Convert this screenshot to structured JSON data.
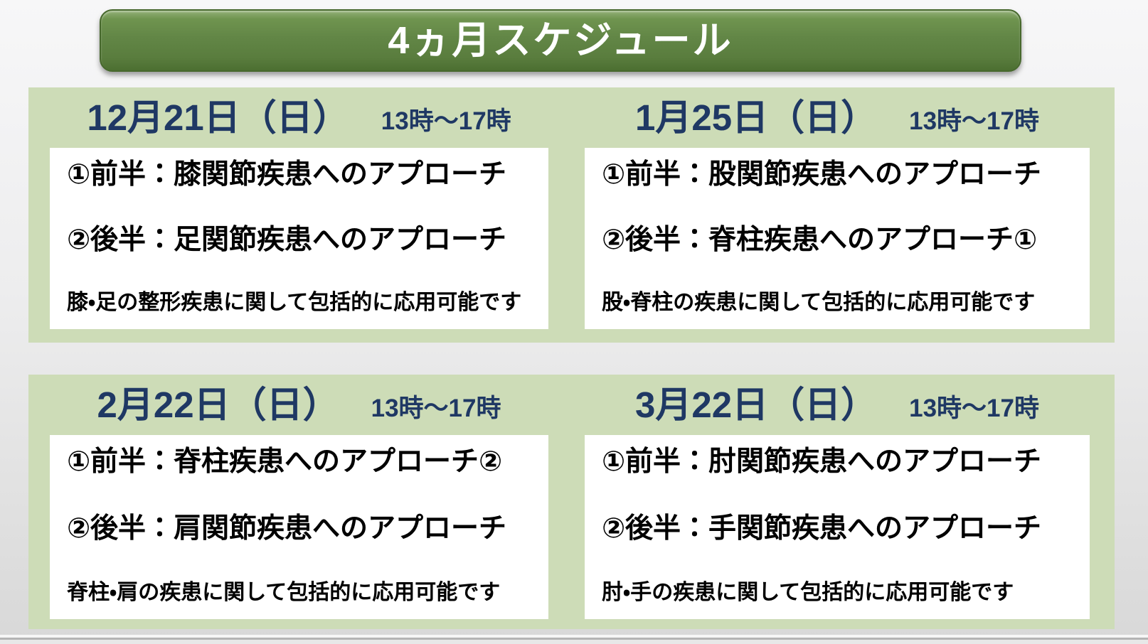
{
  "title": "4ヵ月スケジュール",
  "colors": {
    "navy": "#1f3864",
    "panel-green": "#cddcb7",
    "banner-green": "#628646",
    "banner-border": "#47682d",
    "text-black": "#000000",
    "page-bg-top": "#f7f7f8",
    "page-bg-bottom": "#d8d8d8"
  },
  "sessions": [
    {
      "date": "12月21日（日）",
      "time": "13時～17時",
      "line1": "①前半：膝関節疾患へのアプローチ",
      "line2": "②後半：足関節疾患へのアプローチ",
      "note": "膝・足の整形疾患に関して包括的に応用可能です"
    },
    {
      "date": "1月25日（日）",
      "time": "13時～17時",
      "line1": "①前半：股関節疾患へのアプローチ",
      "line2": "②後半：脊柱疾患へのアプローチ①",
      "note": "股・脊柱の疾患に関して包括的に応用可能です"
    },
    {
      "date": "2月22日（日）",
      "time": "13時～17時",
      "line1": "①前半：脊柱疾患へのアプローチ②",
      "line2": "②後半：肩関節疾患へのアプローチ",
      "note": "脊柱・肩の疾患に関して包括的に応用可能です"
    },
    {
      "date": "3月22日（日）",
      "time": "13時～17時",
      "line1": "①前半：肘関節疾患へのアプローチ",
      "line2": "②後半：手関節疾患へのアプローチ",
      "note": "肘・手の疾患に関して包括的に応用可能です"
    }
  ]
}
